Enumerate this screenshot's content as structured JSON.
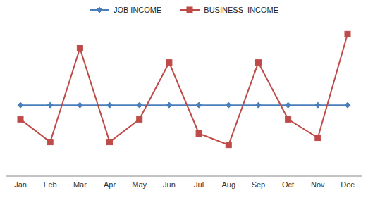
{
  "chart_data": {
    "type": "line",
    "categories": [
      "Jan",
      "Feb",
      "Mar",
      "Apr",
      "May",
      "Jun",
      "Jul",
      "Aug",
      "Sep",
      "Oct",
      "Nov",
      "Dec"
    ],
    "series": [
      {
        "name": "JOB INCOME",
        "color": "#4a7ebb",
        "marker": "diamond",
        "values": [
          50,
          50,
          50,
          50,
          50,
          50,
          50,
          50,
          50,
          50,
          50,
          50
        ]
      },
      {
        "name": "BUSINESS  INCOME",
        "color": "#be4b48",
        "marker": "square",
        "values": [
          40,
          24,
          90,
          24,
          40,
          80,
          30,
          22,
          80,
          40,
          27,
          100
        ]
      }
    ],
    "ylim": [
      0,
      120
    ],
    "tick_labels": "x",
    "legend": "top"
  }
}
